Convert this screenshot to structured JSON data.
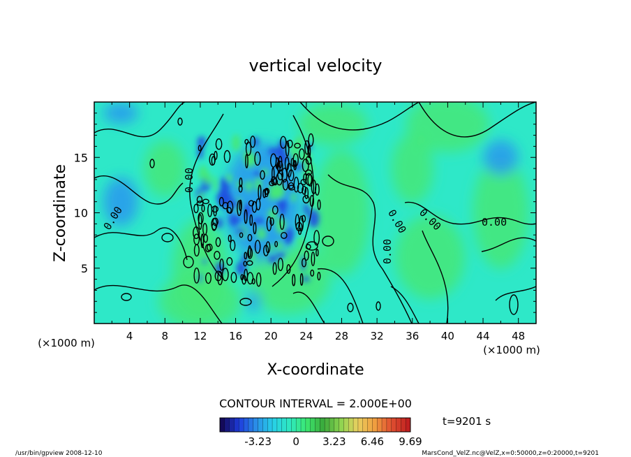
{
  "chart_data": {
    "type": "heatmap",
    "title": "vertical velocity",
    "xlabel": "X-coordinate",
    "ylabel": "Z-coordinate",
    "x_unit": "(×1000 m)",
    "y_unit": "(×1000 m)",
    "xlim": [
      0,
      50
    ],
    "ylim": [
      0,
      20
    ],
    "x_ticks": [
      4,
      8,
      12,
      16,
      20,
      24,
      28,
      32,
      36,
      40,
      44,
      48
    ],
    "y_ticks": [
      5,
      10,
      15
    ],
    "contour_interval_label": "CONTOUR INTERVAL = 2.000E+00",
    "contour_labels": [
      "0.00",
      "0.00",
      "0.00",
      "0.00",
      "0.00",
      "0.00"
    ],
    "colorbar": {
      "ticks": [
        "-3.23",
        "0",
        "3.23",
        "6.46",
        "9.69"
      ],
      "range": [
        -6.46,
        9.69
      ],
      "colors": [
        "#140a5a",
        "#1e3cdc",
        "#2a8ee8",
        "#27d0e8",
        "#2ee8c0",
        "#3ce870",
        "#3aa83a",
        "#8cd450",
        "#e8d060",
        "#f0a040",
        "#e05030",
        "#c02020"
      ]
    },
    "time_label": "t=9201 s",
    "field_colors": {
      "background": "#2ee8c8",
      "positive": "#46e878",
      "negative": "#2a9cec",
      "strong_negative": "#1e50e0"
    }
  },
  "footer": {
    "left": "/usr/bin/gpview   2008-12-10",
    "right": "MarsCond_VelZ.nc@VelZ,x=0:50000,z=0:20000,t=9201"
  }
}
